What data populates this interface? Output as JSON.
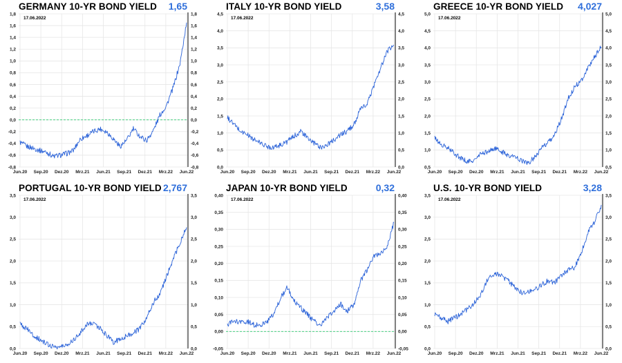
{
  "colors": {
    "line": "#2a62d8",
    "value": "#2f6fdb",
    "zero": "#2ecc71",
    "grid": "#e6e6e6",
    "axis": "#000000"
  },
  "chart_data": [
    {
      "type": "line",
      "title": "GERMANY 10-YR BOND YIELD",
      "last_value": "1,65",
      "date": "17.06.2022",
      "ylim": [
        -0.8,
        1.8
      ],
      "yticks": [
        "-0,8",
        "-0,6",
        "-0,4",
        "-0,2",
        "0,0",
        "0,2",
        "0,4",
        "0,6",
        "0,8",
        "1,0",
        "1,2",
        "1,4",
        "1,6",
        "1,8"
      ],
      "xticks": [
        "Jun.20",
        "Sep.20",
        "Dez.20",
        "Mrz.21",
        "Jun.21",
        "Sep.21",
        "Dez.21",
        "Mrz.22",
        "Jun.22"
      ],
      "zero_line": 0,
      "series": [
        {
          "x": [
            0,
            1,
            2,
            3,
            4,
            5,
            6,
            7,
            8,
            9,
            10,
            11,
            12,
            13,
            14,
            15,
            16,
            17,
            18,
            19,
            20,
            21,
            22,
            23,
            24,
            25
          ],
          "values": [
            -0.38,
            -0.45,
            -0.48,
            -0.52,
            -0.55,
            -0.62,
            -0.6,
            -0.57,
            -0.52,
            -0.33,
            -0.27,
            -0.2,
            -0.15,
            -0.2,
            -0.32,
            -0.45,
            -0.35,
            -0.15,
            -0.28,
            -0.35,
            -0.18,
            0.08,
            0.25,
            0.55,
            0.95,
            1.65
          ]
        }
      ]
    },
    {
      "type": "line",
      "title": "ITALY 10-YR BOND YIELD",
      "last_value": "3,58",
      "date": "17.06.2022",
      "ylim": [
        0,
        4.5
      ],
      "yticks": [
        "0,0",
        "0,5",
        "1,0",
        "1,5",
        "2,0",
        "2,5",
        "3,0",
        "3,5",
        "4,0",
        "4,5"
      ],
      "xticks": [
        "Jun.20",
        "Sep.20",
        "Dez.20",
        "Mrz.21",
        "Jun.21",
        "Sep.21",
        "Dez.21",
        "Mrz.22",
        "Jun.22"
      ],
      "series": [
        {
          "x": [
            0,
            1,
            2,
            3,
            4,
            5,
            6,
            7,
            8,
            9,
            10,
            11,
            12,
            13,
            14,
            15,
            16,
            17,
            18,
            19,
            20,
            21,
            22,
            23,
            24,
            25
          ],
          "values": [
            1.45,
            1.25,
            1.05,
            0.95,
            0.8,
            0.7,
            0.6,
            0.58,
            0.65,
            0.75,
            0.9,
            1.05,
            0.85,
            0.7,
            0.58,
            0.65,
            0.8,
            0.95,
            1.05,
            1.25,
            1.7,
            1.85,
            2.4,
            2.9,
            3.4,
            3.58
          ]
        }
      ]
    },
    {
      "type": "line",
      "title": "GREECE 10-YR BOND YIELD",
      "last_value": "4,027",
      "date": "17.06.2022",
      "ylim": [
        0.5,
        5.0
      ],
      "yticks": [
        "0,5",
        "1,0",
        "1,5",
        "2,0",
        "2,5",
        "3,0",
        "3,5",
        "4,0",
        "4,5",
        "5,0"
      ],
      "xticks": [
        "Jun.20",
        "Sep.20",
        "Dez.20",
        "Mrz.21",
        "Jun.21",
        "Sep.21",
        "Dez.21",
        "Mrz.22",
        "Jun.22"
      ],
      "series": [
        {
          "x": [
            0,
            1,
            2,
            3,
            4,
            5,
            6,
            7,
            8,
            9,
            10,
            11,
            12,
            13,
            14,
            15,
            16,
            17,
            18,
            19,
            20,
            21,
            22,
            23,
            24,
            25
          ],
          "values": [
            1.35,
            1.15,
            1.05,
            0.9,
            0.75,
            0.65,
            0.7,
            0.9,
            0.95,
            1.05,
            0.95,
            0.85,
            0.8,
            0.7,
            0.6,
            0.8,
            1.05,
            1.2,
            1.45,
            1.9,
            2.5,
            2.85,
            3.05,
            3.4,
            3.75,
            4.027
          ]
        }
      ]
    },
    {
      "type": "line",
      "title": "PORTUGAL 10-YR BOND YIELD",
      "last_value": "2,767",
      "date": "17.06.2022",
      "ylim": [
        0,
        3.5
      ],
      "yticks": [
        "0,0",
        "0,5",
        "1,0",
        "1,5",
        "2,0",
        "2,5",
        "3,0",
        "3,5"
      ],
      "xticks": [
        "Jun.20",
        "Sep.20",
        "Dez.20",
        "Mrz.21",
        "Jun.21",
        "Sep.21",
        "Dez.21",
        "Mrz.22",
        "Jun.22"
      ],
      "series": [
        {
          "x": [
            0,
            1,
            2,
            3,
            4,
            5,
            6,
            7,
            8,
            9,
            10,
            11,
            12,
            13,
            14,
            15,
            16,
            17,
            18,
            19,
            20,
            21,
            22,
            23,
            24,
            25
          ],
          "values": [
            0.55,
            0.45,
            0.3,
            0.2,
            0.1,
            0.05,
            0.03,
            0.08,
            0.2,
            0.35,
            0.55,
            0.6,
            0.45,
            0.3,
            0.15,
            0.2,
            0.3,
            0.35,
            0.45,
            0.7,
            1.05,
            1.25,
            1.65,
            2.05,
            2.4,
            2.767
          ]
        }
      ]
    },
    {
      "type": "line",
      "title": "JAPAN 10-YR BOND YIELD",
      "last_value": "0,32",
      "date": "17.06.2022",
      "ylim": [
        -0.05,
        0.4
      ],
      "yticks": [
        "-0,05",
        "0,00",
        "0,05",
        "0,10",
        "0,15",
        "0,20",
        "0,25",
        "0,30",
        "0,35",
        "0,40"
      ],
      "xticks": [
        "Jun.20",
        "Sep.20",
        "Dez.20",
        "Mrz.21",
        "Jun.21",
        "Sep.21",
        "Dez.21",
        "Mrz.22",
        "Jun.22"
      ],
      "zero_line": 0,
      "series": [
        {
          "x": [
            0,
            1,
            2,
            3,
            4,
            5,
            6,
            7,
            8,
            9,
            10,
            11,
            12,
            13,
            14,
            15,
            16,
            17,
            18,
            19,
            20,
            21,
            22,
            23,
            24,
            25
          ],
          "values": [
            0.02,
            0.03,
            0.025,
            0.03,
            0.02,
            0.02,
            0.03,
            0.05,
            0.1,
            0.13,
            0.09,
            0.07,
            0.05,
            0.03,
            0.02,
            0.04,
            0.06,
            0.08,
            0.06,
            0.08,
            0.15,
            0.18,
            0.22,
            0.23,
            0.25,
            0.32
          ]
        }
      ]
    },
    {
      "type": "line",
      "title": "U.S. 10-YR BOND YIELD",
      "last_value": "3,28",
      "date": "17.06.2022",
      "ylim": [
        0,
        3.5
      ],
      "yticks": [
        "0,0",
        "0,5",
        "1,0",
        "1,5",
        "2,0",
        "2,5",
        "3,0",
        "3,5"
      ],
      "xticks": [
        "Jun.20",
        "Sep.20",
        "Dez.20",
        "Mrz.21",
        "Jun.21",
        "Sep.21",
        "Dez.21",
        "Mrz.22",
        "Jun.22"
      ],
      "series": [
        {
          "x": [
            0,
            1,
            2,
            3,
            4,
            5,
            6,
            7,
            8,
            9,
            10,
            11,
            12,
            13,
            14,
            15,
            16,
            17,
            18,
            19,
            20,
            21,
            22,
            23,
            24,
            25
          ],
          "values": [
            0.8,
            0.68,
            0.62,
            0.7,
            0.8,
            0.9,
            1.05,
            1.25,
            1.6,
            1.72,
            1.65,
            1.55,
            1.4,
            1.28,
            1.3,
            1.35,
            1.45,
            1.55,
            1.5,
            1.65,
            1.8,
            1.85,
            2.2,
            2.65,
            2.9,
            3.28
          ]
        }
      ]
    }
  ]
}
